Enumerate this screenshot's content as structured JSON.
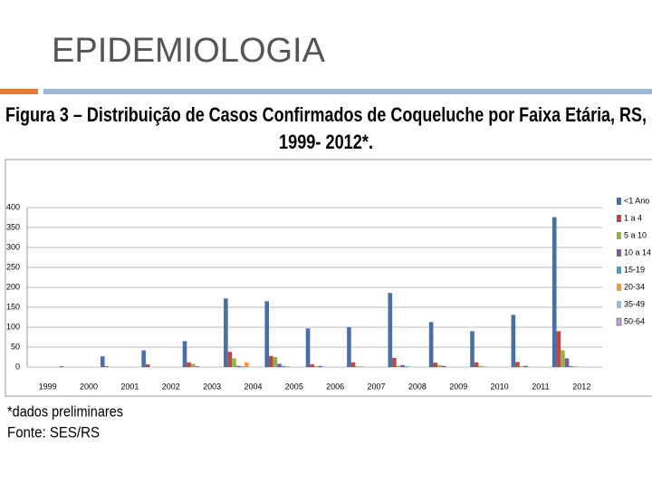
{
  "slide": {
    "heading": "EPIDEMIOLOGIA",
    "notes": [
      "*dados preliminares",
      "Fonte: SES/RS"
    ]
  },
  "chart_data": {
    "type": "bar",
    "title": [
      "Figura 3 – Distribuição de Casos Confirmados de Coqueluche por Faixa Etária, RS,",
      "1999- 2012*."
    ],
    "categories": [
      "1999",
      "2000",
      "2001",
      "2002",
      "2003",
      "2004",
      "2005",
      "2006",
      "2007",
      "2008",
      "2009",
      "2010",
      "2011",
      "2012"
    ],
    "series": [
      {
        "name": "<1 Ano",
        "color": "#4a6fa5",
        "values": [
          0,
          2,
          27,
          42,
          65,
          172,
          165,
          97,
          100,
          186,
          113,
          90,
          131,
          376
        ]
      },
      {
        "name": "1 a 4",
        "color": "#b84a45",
        "values": [
          0,
          0,
          2,
          7,
          12,
          38,
          28,
          7,
          12,
          23,
          11,
          12,
          13,
          90
        ]
      },
      {
        "name": "5 a 10",
        "color": "#93b14f",
        "values": [
          0,
          0,
          0,
          0,
          8,
          22,
          25,
          2,
          2,
          3,
          5,
          3,
          2,
          42
        ]
      },
      {
        "name": "10 a 14",
        "color": "#7a5c9d",
        "values": [
          0,
          0,
          0,
          0,
          2,
          3,
          8,
          3,
          1,
          5,
          3,
          1,
          3,
          22
        ]
      },
      {
        "name": "15-19",
        "color": "#4aa3bd",
        "values": [
          0,
          0,
          0,
          0,
          0,
          2,
          3,
          0,
          0,
          2,
          0,
          0,
          0,
          3
        ]
      },
      {
        "name": "20-34",
        "color": "#f09a43",
        "values": [
          0,
          0,
          0,
          0,
          0,
          12,
          2,
          0,
          0,
          0,
          0,
          0,
          0,
          2
        ]
      },
      {
        "name": "35-49",
        "color": "#9db6d9",
        "values": [
          0,
          0,
          0,
          0,
          0,
          0,
          0,
          0,
          0,
          0,
          0,
          0,
          0,
          1
        ]
      },
      {
        "name": "50-64",
        "color": "#bda6d3",
        "values": [
          0,
          0,
          0,
          0,
          0,
          0,
          0,
          0,
          0,
          0,
          0,
          0,
          0,
          0
        ]
      }
    ],
    "ylim": [
      0,
      400
    ],
    "yticks": [
      0,
      50,
      100,
      150,
      200,
      250,
      300,
      350,
      400
    ],
    "grid": true,
    "legend": "right"
  }
}
